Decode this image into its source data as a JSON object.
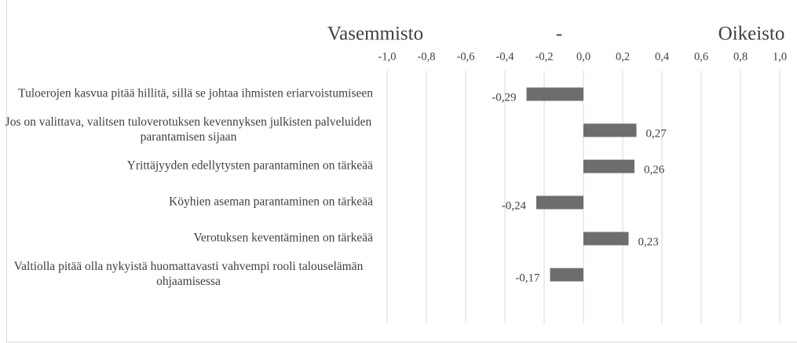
{
  "chart_data": {
    "type": "bar",
    "orientation": "horizontal",
    "annotations": [
      "Vasemmisto",
      "-",
      "Oikeisto"
    ],
    "categories": [
      "Tuloerojen kasvua pitää hillitä, sillä se johtaa ihmisten eriarvoistumiseen",
      "Jos on valittava, valitsen tuloverotuksen kevennyksen julkisten palveluiden parantamisen sijaan",
      "Yrittäjyyden edellytysten parantaminen on tärkeää",
      "Köyhien aseman parantaminen on tärkeää",
      "Verotuksen keventäminen on tärkeää",
      "Valtiolla pitää olla nykyistä huomattavasti vahvempi rooli talouselämän ohjaamisessa"
    ],
    "values": [
      -0.29,
      0.27,
      0.26,
      -0.24,
      0.23,
      -0.17
    ],
    "value_labels": [
      "-0,29",
      "0,27",
      "0,26",
      "-0,24",
      "0,23",
      "-0,17"
    ],
    "color": "#6d6d6d",
    "xlim": [
      -1,
      1
    ],
    "xticks": [
      {
        "value": -1,
        "label": "-1,0"
      },
      {
        "value": -0.8,
        "label": "-0,8"
      },
      {
        "value": -0.6,
        "label": "-0,6"
      },
      {
        "value": -0.4,
        "label": "-0,4"
      },
      {
        "value": -0.2,
        "label": "-0,2"
      },
      {
        "value": 0,
        "label": "0,0"
      },
      {
        "value": 0.2,
        "label": "0,2"
      },
      {
        "value": 0.4,
        "label": "0,4"
      },
      {
        "value": 0.6,
        "label": "0,6"
      },
      {
        "value": 0.8,
        "label": "0,8"
      },
      {
        "value": 1,
        "label": "1,0"
      }
    ],
    "grid": true
  }
}
